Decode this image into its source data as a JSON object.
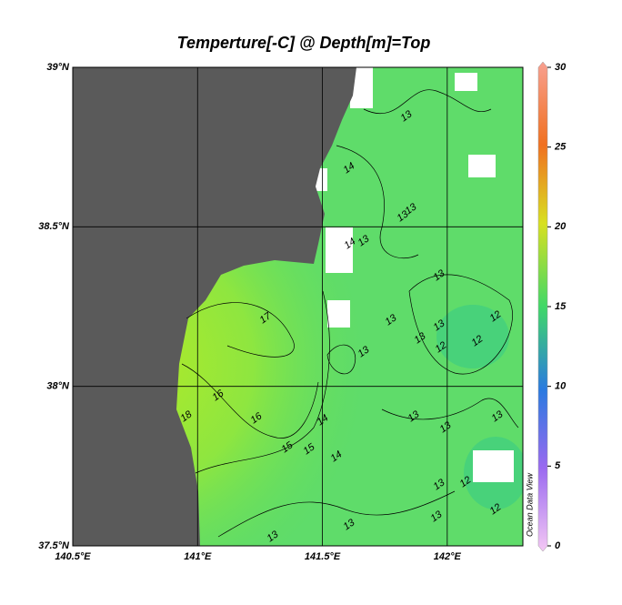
{
  "map": {
    "title": "Temperture[-C] @ Depth[m]=Top",
    "xlim": [
      140.5,
      142.303
    ],
    "ylim": [
      37.5,
      39.0
    ],
    "xticks": [
      {
        "value": 140.5,
        "label": "140.5°E"
      },
      {
        "value": 141,
        "label": "141°E"
      },
      {
        "value": 141.5,
        "label": "141.5°E"
      },
      {
        "value": 142,
        "label": "142°E"
      }
    ],
    "yticks": [
      {
        "value": 37.5,
        "label": "37.5°N"
      },
      {
        "value": 38,
        "label": "38°N"
      },
      {
        "value": 38.5,
        "label": "38.5°N"
      },
      {
        "value": 39,
        "label": "39°N"
      }
    ],
    "colorbar": {
      "lim": [
        0,
        30
      ],
      "ticks": [
        0,
        5,
        10,
        15,
        20,
        25,
        30
      ]
    },
    "contour_labels": [
      13,
      14,
      13,
      13,
      13,
      14,
      13,
      13,
      13,
      13,
      12,
      12,
      12,
      13,
      17,
      16,
      16,
      18,
      14,
      15,
      15,
      14,
      13,
      13,
      13,
      13,
      12,
      12,
      13,
      13,
      13
    ],
    "watermark": "Ocean Data View"
  }
}
